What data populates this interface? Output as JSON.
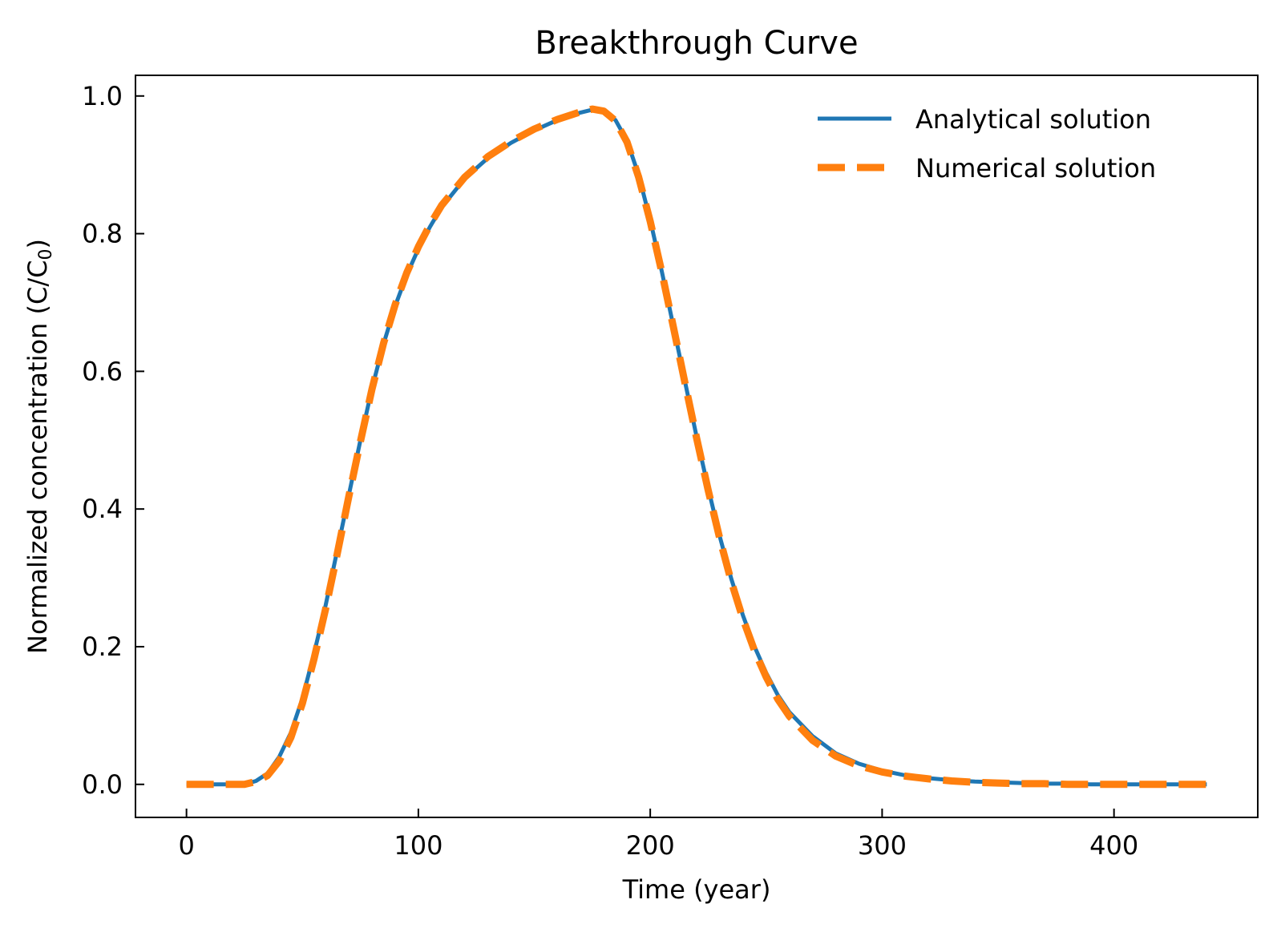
{
  "chart_data": {
    "type": "line",
    "title": "Breakthrough Curve",
    "xlabel": "Time (year)",
    "ylabel_main": "Normalized concentration (C/C",
    "ylabel_sub": "0",
    "ylabel_end": ")",
    "xlim": [
      -22,
      462
    ],
    "ylim": [
      -0.048,
      1.03
    ],
    "xticks": [
      0,
      100,
      200,
      300,
      400
    ],
    "xtick_labels": [
      "0",
      "100",
      "200",
      "300",
      "400"
    ],
    "yticks": [
      0.0,
      0.2,
      0.4,
      0.6,
      0.8,
      1.0
    ],
    "ytick_labels": [
      "0.0",
      "0.2",
      "0.4",
      "0.6",
      "0.8",
      "1.0"
    ],
    "grid": false,
    "legend_position": "top-right",
    "x": [
      0,
      10,
      20,
      25,
      30,
      35,
      40,
      45,
      50,
      55,
      60,
      65,
      70,
      75,
      80,
      85,
      90,
      95,
      100,
      105,
      110,
      120,
      130,
      140,
      150,
      160,
      170,
      175,
      180,
      185,
      190,
      195,
      200,
      205,
      210,
      215,
      220,
      225,
      230,
      235,
      240,
      245,
      250,
      255,
      260,
      270,
      280,
      290,
      300,
      310,
      320,
      330,
      340,
      350,
      360,
      370,
      380,
      390,
      400,
      410,
      420,
      430,
      440
    ],
    "series": [
      {
        "name": "Analytical solution",
        "color": "#1f77b4",
        "style": "solid",
        "values": [
          0.0,
          0.0,
          0.0,
          0.0,
          0.005,
          0.016,
          0.04,
          0.075,
          0.125,
          0.19,
          0.26,
          0.34,
          0.42,
          0.5,
          0.575,
          0.64,
          0.695,
          0.74,
          0.778,
          0.81,
          0.838,
          0.88,
          0.91,
          0.932,
          0.95,
          0.965,
          0.976,
          0.98,
          0.978,
          0.965,
          0.935,
          0.885,
          0.82,
          0.745,
          0.665,
          0.585,
          0.505,
          0.43,
          0.36,
          0.298,
          0.245,
          0.2,
          0.162,
          0.13,
          0.105,
          0.07,
          0.045,
          0.03,
          0.02,
          0.013,
          0.009,
          0.006,
          0.004,
          0.003,
          0.002,
          0.001,
          0.001,
          0.0,
          0.0,
          0.0,
          0.0,
          0.0,
          0.0
        ]
      },
      {
        "name": "Numerical solution",
        "color": "#ff7f0e",
        "style": "dashed",
        "values": [
          0.0,
          0.0,
          0.0,
          0.0,
          0.004,
          0.013,
          0.034,
          0.068,
          0.118,
          0.182,
          0.255,
          0.335,
          0.418,
          0.498,
          0.574,
          0.641,
          0.697,
          0.743,
          0.781,
          0.813,
          0.841,
          0.882,
          0.912,
          0.934,
          0.952,
          0.966,
          0.977,
          0.981,
          0.978,
          0.964,
          0.933,
          0.882,
          0.818,
          0.744,
          0.664,
          0.583,
          0.503,
          0.427,
          0.357,
          0.294,
          0.24,
          0.194,
          0.156,
          0.124,
          0.099,
          0.064,
          0.041,
          0.027,
          0.018,
          0.012,
          0.008,
          0.005,
          0.003,
          0.002,
          0.001,
          0.001,
          0.0,
          0.0,
          0.0,
          0.0,
          0.0,
          0.0,
          0.0
        ]
      }
    ]
  }
}
